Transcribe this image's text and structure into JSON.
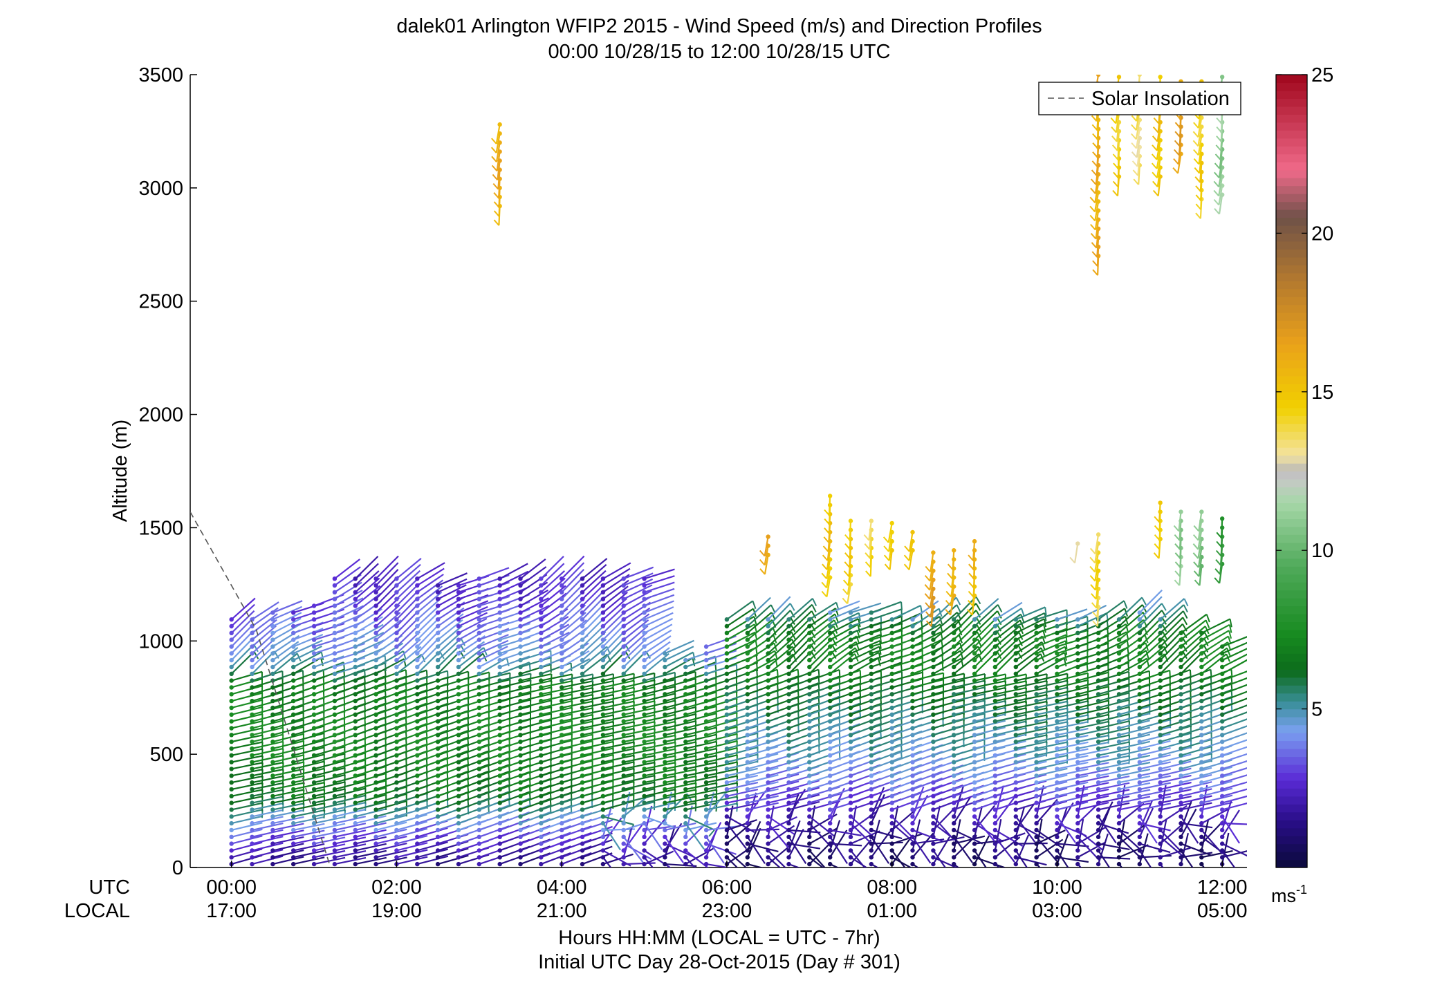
{
  "chart_data": {
    "type": "wind-barb-profile",
    "title": "dalek01 Arlington WFIP2 2015 - Wind Speed (m/s) and Direction Profiles",
    "subtitle": "00:00 10/28/15 to 12:00 10/28/15  UTC",
    "ylabel": "Altitude (m)",
    "ylim": [
      0,
      3500
    ],
    "y_ticks": [
      0,
      500,
      1000,
      1500,
      2000,
      2500,
      3000,
      3500
    ],
    "xlim_hours_utc": [
      -0.5,
      12.3
    ],
    "x_axis_row_labels": [
      "UTC",
      "LOCAL"
    ],
    "x_ticks_utc": [
      "00:00",
      "02:00",
      "04:00",
      "06:00",
      "08:00",
      "10:00",
      "12:00"
    ],
    "x_ticks_local": [
      "17:00",
      "19:00",
      "21:00",
      "23:00",
      "01:00",
      "03:00",
      "05:00"
    ],
    "x_tick_hours": [
      0,
      2,
      4,
      6,
      8,
      10,
      12
    ],
    "xlabel_line1": "Hours HH:MM  (LOCAL = UTC - 7hr)",
    "xlabel_line2": "Initial UTC Day 28-Oct-2015 (Day # 301)",
    "legend": {
      "entries": [
        "Solar Insolation"
      ],
      "placement": "top-right"
    },
    "solar_insolation": {
      "hours": [
        -0.5,
        0.3,
        1.2
      ],
      "altitude": [
        1570,
        1050,
        0
      ]
    },
    "colorbar": {
      "min": 0,
      "max": 25,
      "ticks": [
        5,
        10,
        15,
        20,
        25
      ],
      "unit_label": "ms",
      "unit_exponent": "-1",
      "stops": [
        {
          "v": 0,
          "c": "#0a0a3a"
        },
        {
          "v": 1.5,
          "c": "#2a0e8a"
        },
        {
          "v": 2.8,
          "c": "#5a2bd6"
        },
        {
          "v": 4.3,
          "c": "#7aa0f0"
        },
        {
          "v": 5.2,
          "c": "#3a8f9a"
        },
        {
          "v": 6.2,
          "c": "#0d6b1c"
        },
        {
          "v": 7.3,
          "c": "#168a1f"
        },
        {
          "v": 9.5,
          "c": "#50aa5a"
        },
        {
          "v": 11.5,
          "c": "#a6d7a8"
        },
        {
          "v": 12.3,
          "c": "#c8c8c8"
        },
        {
          "v": 12.5,
          "c": "#b8b8b8"
        },
        {
          "v": 13.0,
          "c": "#f3e3a0"
        },
        {
          "v": 14.5,
          "c": "#f1d000"
        },
        {
          "v": 16.5,
          "c": "#eaa21a"
        },
        {
          "v": 18.5,
          "c": "#b4792e"
        },
        {
          "v": 20.5,
          "c": "#6f5148"
        },
        {
          "v": 22.0,
          "c": "#f06a8a"
        },
        {
          "v": 25.0,
          "c": "#a0061c"
        }
      ]
    },
    "profile_times_utc_hours": [
      0.0,
      0.25,
      0.5,
      0.75,
      1.0,
      1.25,
      1.5,
      1.75,
      2.0,
      2.25,
      2.5,
      2.75,
      3.0,
      3.25,
      3.5,
      3.75,
      4.0,
      4.25,
      4.5,
      4.75,
      5.0,
      5.25,
      5.5,
      5.75,
      6.0,
      6.25,
      6.5,
      6.75,
      7.0,
      7.25,
      7.5,
      7.75,
      8.0,
      8.25,
      8.5,
      8.75,
      9.0,
      9.25,
      9.5,
      9.75,
      10.0,
      10.25,
      10.5,
      10.75,
      11.0,
      11.25,
      11.5,
      11.75,
      12.0
    ],
    "profile_tops_m": [
      1120,
      1120,
      1150,
      1150,
      1160,
      1300,
      1300,
      1300,
      1300,
      1300,
      1250,
      1250,
      1300,
      1300,
      1300,
      1300,
      1300,
      1300,
      1300,
      1300,
      1300,
      950,
      930,
      980,
      1100,
      1100,
      1100,
      1100,
      1100,
      1150,
      1150,
      1150,
      1100,
      1100,
      1100,
      1100,
      1100,
      1100,
      1100,
      1100,
      1100,
      1100,
      1100,
      1100,
      1150,
      1100,
      1050,
      1050,
      1000
    ],
    "profile_step_m": 30,
    "speed_layers": [
      {
        "alt": 0,
        "speed": 1.5
      },
      {
        "alt": 60,
        "speed": 2.0
      },
      {
        "alt": 150,
        "speed": 3.5
      },
      {
        "alt": 300,
        "speed": 6.5
      },
      {
        "alt": 550,
        "speed": 7.2
      },
      {
        "alt": 800,
        "speed": 6.8
      },
      {
        "alt": 900,
        "speed": 4.5
      },
      {
        "alt": 1000,
        "speed": 4.0
      },
      {
        "alt": 1150,
        "speed": 3.0
      },
      {
        "alt": 1300,
        "speed": 2.5
      }
    ],
    "late_speed_layers": [
      {
        "alt": 0,
        "speed": 1.0
      },
      {
        "alt": 100,
        "speed": 1.2
      },
      {
        "alt": 250,
        "speed": 2.6
      },
      {
        "alt": 450,
        "speed": 4.5
      },
      {
        "alt": 650,
        "speed": 5.5
      },
      {
        "alt": 850,
        "speed": 6.8
      },
      {
        "alt": 1000,
        "speed": 7.2
      },
      {
        "alt": 1100,
        "speed": 5.0
      }
    ],
    "upper_barb_groups": [
      {
        "hour": 3.25,
        "alt_bottom": 2920,
        "alt_top": 3310,
        "speed": 16.0
      },
      {
        "hour": 6.5,
        "alt_bottom": 1380,
        "alt_top": 1490,
        "speed": 16.5
      },
      {
        "hour": 7.25,
        "alt_bottom": 1280,
        "alt_top": 1660,
        "speed": 15.0
      },
      {
        "hour": 7.5,
        "alt_bottom": 1250,
        "alt_top": 1530,
        "speed": 14.5
      },
      {
        "hour": 7.75,
        "alt_bottom": 1370,
        "alt_top": 1530,
        "speed": 14.0
      },
      {
        "hour": 8.0,
        "alt_bottom": 1400,
        "alt_top": 1530,
        "speed": 15.0
      },
      {
        "hour": 8.25,
        "alt_bottom": 1400,
        "alt_top": 1500,
        "speed": 15.5
      },
      {
        "hour": 8.5,
        "alt_bottom": 1150,
        "alt_top": 1410,
        "speed": 16.5
      },
      {
        "hour": 8.75,
        "alt_bottom": 1200,
        "alt_top": 1410,
        "speed": 16.0
      },
      {
        "hour": 9.0,
        "alt_bottom": 1200,
        "alt_top": 1450,
        "speed": 15.5
      },
      {
        "hour": 10.25,
        "alt_bottom": 1430,
        "alt_top": 1450,
        "speed": 12.5
      },
      {
        "hour": 10.5,
        "alt_bottom": 1150,
        "alt_top": 1490,
        "speed": 14.0
      },
      {
        "hour": 10.5,
        "alt_bottom": 2700,
        "alt_top": 3500,
        "speed": 16.0
      },
      {
        "hour": 10.75,
        "alt_bottom": 3050,
        "alt_top": 3500,
        "speed": 14.5
      },
      {
        "hour": 11.0,
        "alt_bottom": 3100,
        "alt_top": 3500,
        "speed": 13.5
      },
      {
        "hour": 11.25,
        "alt_bottom": 3050,
        "alt_top": 3500,
        "speed": 15.0
      },
      {
        "hour": 11.5,
        "alt_bottom": 3150,
        "alt_top": 3500,
        "speed": 16.5
      },
      {
        "hour": 11.25,
        "alt_bottom": 1450,
        "alt_top": 1620,
        "speed": 15.0
      },
      {
        "hour": 11.5,
        "alt_bottom": 1330,
        "alt_top": 1570,
        "speed": 11.0
      },
      {
        "hour": 11.75,
        "alt_bottom": 2950,
        "alt_top": 3500,
        "speed": 14.5
      },
      {
        "hour": 11.75,
        "alt_bottom": 1330,
        "alt_top": 1570,
        "speed": 10.5
      },
      {
        "hour": 12.0,
        "alt_bottom": 2970,
        "alt_top": 3500,
        "speed": 11.0
      },
      {
        "hour": 12.0,
        "alt_bottom": 1340,
        "alt_top": 1550,
        "speed": 8.0
      }
    ]
  }
}
